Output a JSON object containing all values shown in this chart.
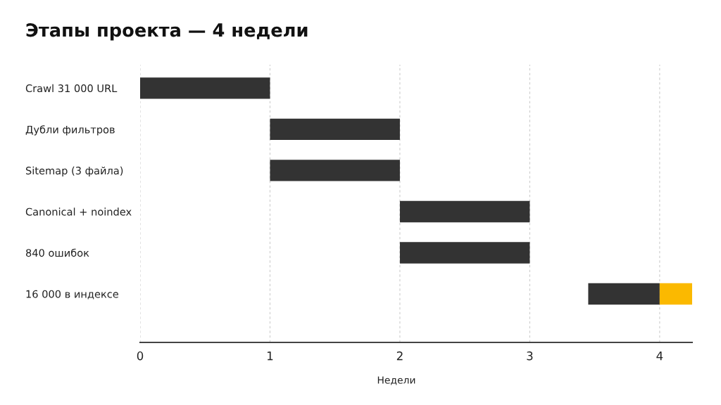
{
  "chart_data": {
    "type": "bar",
    "orientation": "horizontal",
    "title": "Этапы проекта — 4 недели",
    "xlabel": "Недели",
    "categories": [
      "Crawl 31 000 URL",
      "Дубли фильтров",
      "Sitemap (3 файла)",
      "Canonical + noindex",
      "840 ошибок",
      "16 000 в индексе"
    ],
    "series": [
      {
        "color": "#333333",
        "values": [
          1,
          1,
          1,
          1,
          1,
          0.55
        ],
        "base": [
          0,
          1,
          1,
          2,
          2,
          3.45
        ]
      },
      {
        "color": "#fbb900",
        "values": [
          null,
          null,
          null,
          null,
          null,
          0.25
        ],
        "base": [
          null,
          null,
          null,
          null,
          null,
          4
        ]
      }
    ],
    "xlim": [
      0,
      4.25
    ],
    "xticks": [
      0,
      1,
      2,
      3,
      4
    ],
    "grid": "x"
  }
}
